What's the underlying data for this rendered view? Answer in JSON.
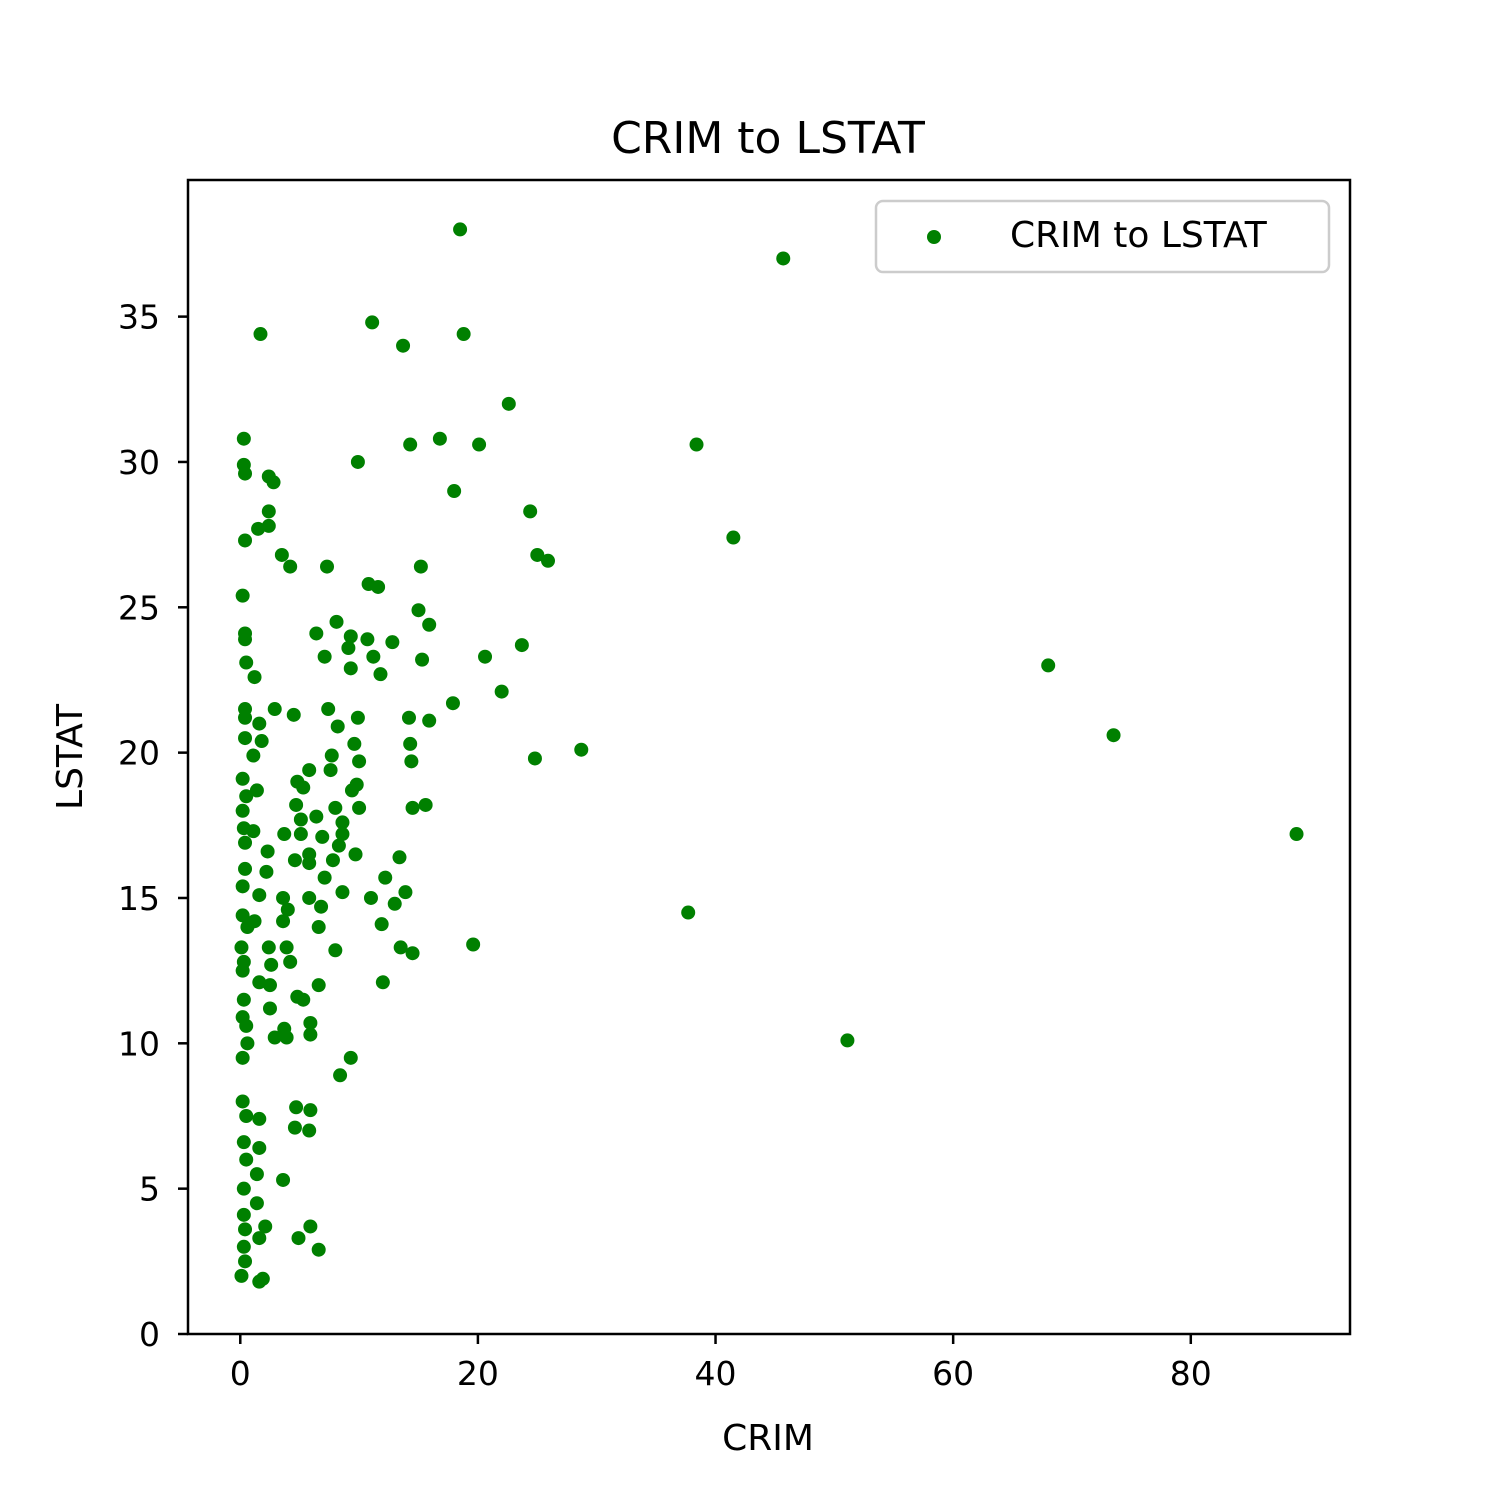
{
  "chart_data": {
    "type": "scatter",
    "title": "CRIM to LSTAT",
    "xlabel": "CRIM",
    "ylabel": "LSTAT",
    "xlim": [
      -4.4,
      93.4
    ],
    "ylim": [
      0,
      39.7
    ],
    "xticks": [
      0,
      20,
      40,
      60,
      80
    ],
    "yticks": [
      0,
      5,
      10,
      15,
      20,
      25,
      30,
      35
    ],
    "grid": false,
    "legend_position": "top-right",
    "series": [
      {
        "name": "CRIM to LSTAT",
        "color": "#008000",
        "points": [
          [
            18.5,
            38.0
          ],
          [
            45.7,
            37.0
          ],
          [
            1.7,
            34.4
          ],
          [
            11.1,
            34.8
          ],
          [
            13.7,
            34.0
          ],
          [
            18.8,
            34.4
          ],
          [
            22.6,
            32.0
          ],
          [
            0.3,
            30.8
          ],
          [
            0.3,
            29.9
          ],
          [
            0.4,
            29.6
          ],
          [
            2.4,
            29.5
          ],
          [
            2.8,
            29.3
          ],
          [
            9.9,
            30.0
          ],
          [
            14.3,
            30.6
          ],
          [
            16.8,
            30.8
          ],
          [
            20.1,
            30.6
          ],
          [
            38.4,
            30.6
          ],
          [
            18.0,
            29.0
          ],
          [
            2.4,
            28.3
          ],
          [
            2.4,
            27.8
          ],
          [
            1.5,
            27.7
          ],
          [
            0.4,
            27.3
          ],
          [
            24.4,
            28.3
          ],
          [
            41.5,
            27.4
          ],
          [
            3.5,
            26.8
          ],
          [
            4.2,
            26.4
          ],
          [
            7.3,
            26.4
          ],
          [
            15.2,
            26.4
          ],
          [
            25.0,
            26.8
          ],
          [
            25.9,
            26.6
          ],
          [
            10.8,
            25.8
          ],
          [
            11.6,
            25.7
          ],
          [
            0.2,
            25.4
          ],
          [
            15.0,
            24.9
          ],
          [
            8.1,
            24.5
          ],
          [
            15.9,
            24.4
          ],
          [
            6.4,
            24.1
          ],
          [
            9.3,
            24.0
          ],
          [
            10.7,
            23.9
          ],
          [
            0.4,
            24.1
          ],
          [
            0.4,
            23.9
          ],
          [
            9.1,
            23.6
          ],
          [
            12.8,
            23.8
          ],
          [
            23.7,
            23.7
          ],
          [
            20.6,
            23.3
          ],
          [
            7.1,
            23.3
          ],
          [
            11.2,
            23.3
          ],
          [
            15.3,
            23.2
          ],
          [
            0.5,
            23.1
          ],
          [
            9.3,
            22.9
          ],
          [
            11.8,
            22.7
          ],
          [
            1.2,
            22.6
          ],
          [
            22.0,
            22.1
          ],
          [
            17.9,
            21.7
          ],
          [
            2.9,
            21.5
          ],
          [
            0.4,
            21.5
          ],
          [
            7.4,
            21.5
          ],
          [
            4.5,
            21.3
          ],
          [
            0.4,
            21.2
          ],
          [
            9.9,
            21.2
          ],
          [
            14.2,
            21.2
          ],
          [
            15.9,
            21.1
          ],
          [
            1.6,
            21.0
          ],
          [
            8.2,
            20.9
          ],
          [
            0.4,
            20.5
          ],
          [
            1.8,
            20.4
          ],
          [
            9.6,
            20.3
          ],
          [
            14.3,
            20.3
          ],
          [
            28.7,
            20.1
          ],
          [
            1.1,
            19.9
          ],
          [
            7.7,
            19.9
          ],
          [
            14.4,
            19.7
          ],
          [
            24.8,
            19.8
          ],
          [
            10.0,
            19.7
          ],
          [
            5.8,
            19.4
          ],
          [
            7.6,
            19.4
          ],
          [
            0.2,
            19.1
          ],
          [
            4.8,
            19.0
          ],
          [
            5.3,
            18.8
          ],
          [
            9.4,
            18.7
          ],
          [
            9.8,
            18.9
          ],
          [
            1.4,
            18.7
          ],
          [
            0.5,
            18.5
          ],
          [
            4.7,
            18.2
          ],
          [
            8.0,
            18.1
          ],
          [
            10.0,
            18.1
          ],
          [
            14.5,
            18.1
          ],
          [
            15.6,
            18.2
          ],
          [
            0.2,
            18.0
          ],
          [
            5.1,
            17.7
          ],
          [
            6.4,
            17.8
          ],
          [
            8.6,
            17.6
          ],
          [
            0.3,
            17.4
          ],
          [
            1.1,
            17.3
          ],
          [
            3.7,
            17.2
          ],
          [
            5.1,
            17.2
          ],
          [
            6.9,
            17.1
          ],
          [
            8.6,
            17.2
          ],
          [
            0.4,
            16.9
          ],
          [
            8.3,
            16.8
          ],
          [
            2.3,
            16.6
          ],
          [
            5.8,
            16.5
          ],
          [
            9.7,
            16.5
          ],
          [
            4.6,
            16.3
          ],
          [
            5.8,
            16.2
          ],
          [
            7.8,
            16.3
          ],
          [
            13.4,
            16.4
          ],
          [
            0.4,
            16.0
          ],
          [
            2.2,
            15.9
          ],
          [
            7.1,
            15.7
          ],
          [
            12.2,
            15.7
          ],
          [
            0.2,
            15.4
          ],
          [
            3.6,
            15.0
          ],
          [
            11.0,
            15.0
          ],
          [
            13.9,
            15.2
          ],
          [
            8.6,
            15.2
          ],
          [
            1.6,
            15.1
          ],
          [
            5.8,
            15.0
          ],
          [
            6.8,
            14.7
          ],
          [
            13.0,
            14.8
          ],
          [
            37.7,
            14.5
          ],
          [
            0.2,
            14.4
          ],
          [
            1.2,
            14.2
          ],
          [
            4.0,
            14.6
          ],
          [
            0.6,
            14.0
          ],
          [
            3.6,
            14.2
          ],
          [
            6.6,
            14.0
          ],
          [
            11.9,
            14.1
          ],
          [
            19.6,
            13.4
          ],
          [
            0.1,
            13.3
          ],
          [
            2.4,
            13.3
          ],
          [
            3.9,
            13.3
          ],
          [
            8.0,
            13.2
          ],
          [
            13.5,
            13.3
          ],
          [
            14.5,
            13.1
          ],
          [
            0.3,
            12.8
          ],
          [
            2.6,
            12.7
          ],
          [
            4.2,
            12.8
          ],
          [
            0.2,
            12.5
          ],
          [
            1.6,
            12.1
          ],
          [
            2.5,
            12.0
          ],
          [
            6.6,
            12.0
          ],
          [
            12.0,
            12.1
          ],
          [
            0.3,
            11.5
          ],
          [
            4.8,
            11.6
          ],
          [
            5.3,
            11.5
          ],
          [
            2.5,
            11.2
          ],
          [
            0.2,
            10.9
          ],
          [
            5.9,
            10.7
          ],
          [
            0.5,
            10.6
          ],
          [
            3.7,
            10.5
          ],
          [
            3.9,
            10.2
          ],
          [
            5.9,
            10.3
          ],
          [
            2.9,
            10.2
          ],
          [
            0.6,
            10.0
          ],
          [
            51.1,
            10.1
          ],
          [
            0.2,
            9.5
          ],
          [
            9.3,
            9.5
          ],
          [
            8.4,
            8.9
          ],
          [
            0.2,
            8.0
          ],
          [
            0.5,
            7.5
          ],
          [
            1.6,
            7.4
          ],
          [
            4.7,
            7.8
          ],
          [
            5.9,
            7.7
          ],
          [
            4.6,
            7.1
          ],
          [
            5.8,
            7.0
          ],
          [
            0.3,
            6.6
          ],
          [
            1.6,
            6.4
          ],
          [
            0.5,
            6.0
          ],
          [
            1.4,
            5.5
          ],
          [
            3.6,
            5.3
          ],
          [
            0.3,
            5.0
          ],
          [
            1.4,
            4.5
          ],
          [
            0.3,
            4.1
          ],
          [
            0.4,
            3.6
          ],
          [
            2.1,
            3.7
          ],
          [
            5.9,
            3.7
          ],
          [
            1.6,
            3.3
          ],
          [
            4.9,
            3.3
          ],
          [
            6.6,
            2.9
          ],
          [
            0.3,
            3.0
          ],
          [
            0.4,
            2.5
          ],
          [
            0.1,
            2.0
          ],
          [
            1.6,
            1.8
          ],
          [
            1.9,
            1.9
          ],
          [
            68.0,
            23.0
          ],
          [
            73.5,
            20.6
          ],
          [
            88.9,
            17.2
          ]
        ]
      }
    ]
  }
}
